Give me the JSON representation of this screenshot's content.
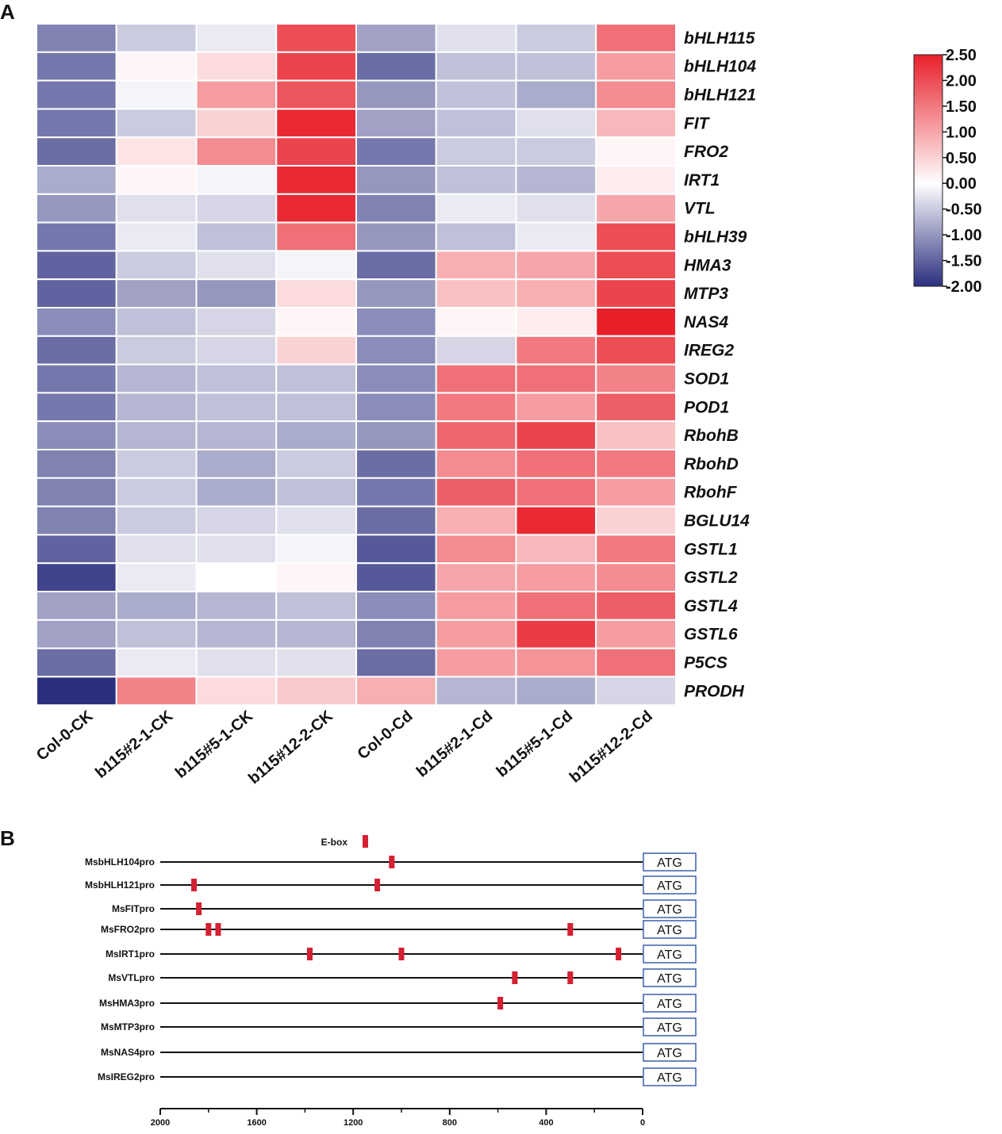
{
  "panels": {
    "a": "A",
    "b": "B"
  },
  "chart_data": [
    {
      "type": "heatmap",
      "title": "",
      "rows": [
        "bHLH115",
        "bHLH104",
        "bHLH121",
        "FIT",
        "FRO2",
        "IRT1",
        "VTL",
        "bHLH39",
        "HMA3",
        "MTP3",
        "NAS4",
        "IREG2",
        "SOD1",
        "POD1",
        "RbohB",
        "RbohD",
        "RbohF",
        "BGLU14",
        "GSTL1",
        "GSTL2",
        "GSTL4",
        "GSTL6",
        "P5CS",
        "PRODH"
      ],
      "columns": [
        "Col-0-CK",
        "b115#2-1-CK",
        "b115#5-1-CK",
        "b115#12-2-CK",
        "Col-0-Cd",
        "b115#2-1-Cd",
        "b115#5-1-Cd",
        "b115#12-2-Cd"
      ],
      "values": [
        [
          -1.2,
          -0.5,
          -0.2,
          2.0,
          -0.9,
          -0.3,
          -0.5,
          1.6
        ],
        [
          -1.3,
          0.1,
          0.4,
          2.1,
          -1.4,
          -0.6,
          -0.6,
          1.1
        ],
        [
          -1.3,
          -0.1,
          1.1,
          1.9,
          -1.0,
          -0.6,
          -0.8,
          1.3
        ],
        [
          -1.3,
          -0.5,
          0.5,
          2.4,
          -0.9,
          -0.6,
          -0.3,
          0.8
        ],
        [
          -1.4,
          0.3,
          1.3,
          2.1,
          -1.3,
          -0.5,
          -0.5,
          0.1
        ],
        [
          -0.8,
          0.1,
          -0.1,
          2.4,
          -1.0,
          -0.6,
          -0.7,
          0.2
        ],
        [
          -1.0,
          -0.3,
          -0.4,
          2.4,
          -1.2,
          -0.2,
          -0.3,
          1.0
        ],
        [
          -1.3,
          -0.2,
          -0.6,
          1.6,
          -1.0,
          -0.6,
          -0.2,
          2.0
        ],
        [
          -1.5,
          -0.5,
          -0.3,
          -0.1,
          -1.4,
          0.9,
          1.0,
          2.0
        ],
        [
          -1.5,
          -0.9,
          -1.0,
          0.4,
          -1.0,
          0.7,
          0.9,
          2.1
        ],
        [
          -1.1,
          -0.6,
          -0.4,
          0.1,
          -1.1,
          0.1,
          0.2,
          2.5
        ],
        [
          -1.4,
          -0.5,
          -0.4,
          0.5,
          -1.1,
          -0.4,
          1.5,
          2.0
        ],
        [
          -1.3,
          -0.7,
          -0.6,
          -0.6,
          -1.1,
          1.6,
          1.6,
          1.4
        ],
        [
          -1.3,
          -0.7,
          -0.6,
          -0.6,
          -1.1,
          1.5,
          1.1,
          1.8
        ],
        [
          -1.1,
          -0.7,
          -0.7,
          -0.8,
          -1.0,
          1.7,
          2.1,
          0.7
        ],
        [
          -1.2,
          -0.5,
          -0.8,
          -0.5,
          -1.4,
          1.3,
          1.6,
          1.5
        ],
        [
          -1.2,
          -0.5,
          -0.8,
          -0.6,
          -1.3,
          1.8,
          1.6,
          1.1
        ],
        [
          -1.2,
          -0.5,
          -0.4,
          -0.3,
          -1.4,
          0.9,
          2.4,
          0.5
        ],
        [
          -1.5,
          -0.3,
          -0.3,
          -0.1,
          -1.6,
          1.3,
          0.8,
          1.5
        ],
        [
          -1.8,
          -0.2,
          0.0,
          0.1,
          -1.6,
          1.0,
          1.1,
          1.3
        ],
        [
          -0.9,
          -0.8,
          -0.7,
          -0.6,
          -1.1,
          1.1,
          1.6,
          1.8
        ],
        [
          -0.9,
          -0.6,
          -0.7,
          -0.7,
          -1.2,
          1.1,
          2.2,
          1.1
        ],
        [
          -1.4,
          -0.2,
          -0.3,
          -0.3,
          -1.4,
          1.1,
          1.2,
          1.6
        ],
        [
          -2.0,
          1.4,
          0.4,
          0.6,
          0.9,
          -0.7,
          -0.8,
          -0.4
        ]
      ],
      "colorbar": {
        "min": -2.0,
        "max": 2.5,
        "ticks": [
          "2.50",
          "2.00",
          "1.50",
          "1.00",
          "0.50",
          "0.00",
          "-0.50",
          "-1.00",
          "-1.50",
          "-2.00"
        ],
        "low_color": "#2b2f7f",
        "mid_color": "#ffffff",
        "high_color": "#e8202a"
      }
    },
    {
      "type": "diagram",
      "title": "",
      "legend_label": "E-box",
      "atg_label": "ATG",
      "x_axis": {
        "min": 0,
        "max": 2000,
        "reversed": true,
        "ticks": [
          2000,
          1600,
          1200,
          800,
          400,
          0
        ]
      },
      "promoters": [
        {
          "name": "MsbHLH104pro",
          "ebox_positions": [
            1040
          ]
        },
        {
          "name": "MsbHLH121pro",
          "ebox_positions": [
            1860,
            1100
          ]
        },
        {
          "name": "MsFITpro",
          "ebox_positions": [
            1840
          ]
        },
        {
          "name": "MsFRO2pro",
          "ebox_positions": [
            1800,
            1760,
            300
          ]
        },
        {
          "name": "MsIRT1pro",
          "ebox_positions": [
            1380,
            1000,
            100
          ]
        },
        {
          "name": "MsVTLpro",
          "ebox_positions": [
            530,
            300
          ]
        },
        {
          "name": "MsHMA3pro",
          "ebox_positions": [
            590
          ]
        },
        {
          "name": "MsMTP3pro",
          "ebox_positions": []
        },
        {
          "name": "MsNAS4pro",
          "ebox_positions": []
        },
        {
          "name": "MsIREG2pro",
          "ebox_positions": []
        }
      ],
      "colors": {
        "ebox": "#d32032",
        "atg_border": "#3c5fae",
        "line": "#111111"
      }
    }
  ]
}
